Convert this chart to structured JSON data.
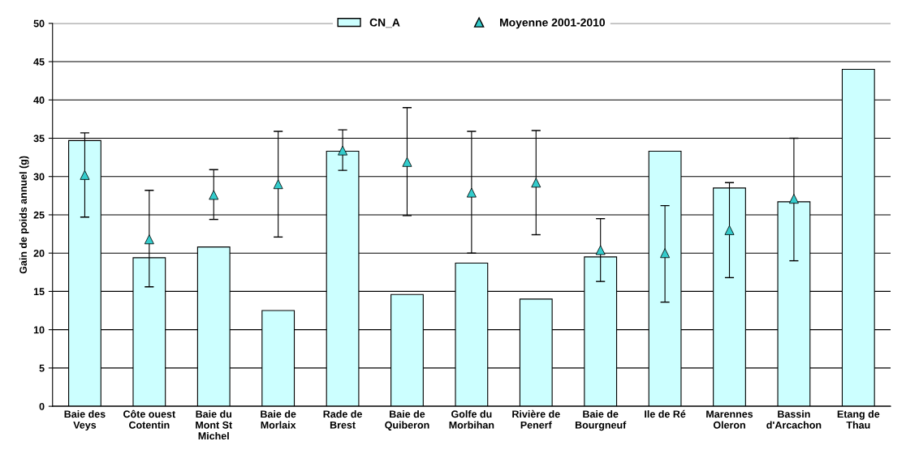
{
  "chart_data": {
    "type": "bar",
    "ylabel": "Gain de poids annuel (g)",
    "categories": [
      "Baie des\nVeys",
      "Côte ouest\nCotentin",
      "Baie du\nMont St\nMichel",
      "Baie de\nMorlaix",
      "Rade de\nBrest",
      "Baie de\nQuiberon",
      "Golfe du\nMorbihan",
      "Rivière de\nPenerf",
      "Baie de\nBourgneuf",
      "Ile de Ré",
      "Marennes\nOleron",
      "Bassin\nd'Arcachon",
      "Etang de\nThau"
    ],
    "series": [
      {
        "name": "CN_A",
        "color": "#ccffff",
        "values": [
          34.7,
          19.4,
          20.8,
          12.5,
          33.3,
          14.6,
          18.7,
          14.0,
          19.5,
          33.3,
          28.5,
          26.7,
          44.0
        ]
      },
      {
        "name": "Moyenne 2001-2010",
        "type": "scatter",
        "color": "#33cccc",
        "marker": "triangle",
        "values": [
          30.2,
          21.8,
          27.6,
          29.0,
          33.4,
          31.9,
          27.9,
          29.2,
          20.4,
          20.0,
          23.0,
          27.1,
          null
        ],
        "errors": [
          [
            24.7,
            35.7
          ],
          [
            15.6,
            28.2
          ],
          [
            24.4,
            30.9
          ],
          [
            22.1,
            35.9
          ],
          [
            30.8,
            36.1
          ],
          [
            24.9,
            39.0
          ],
          [
            20.0,
            35.9
          ],
          [
            22.4,
            36.0
          ],
          [
            16.3,
            24.5
          ],
          [
            13.6,
            26.2
          ],
          [
            16.8,
            29.2
          ],
          [
            19.0,
            35.0
          ],
          null
        ]
      }
    ],
    "ylim": [
      0,
      50
    ],
    "yticks": [
      0,
      5,
      10,
      15,
      20,
      25,
      30,
      35,
      40,
      45,
      50
    ],
    "grid": "y",
    "legend": "top"
  }
}
